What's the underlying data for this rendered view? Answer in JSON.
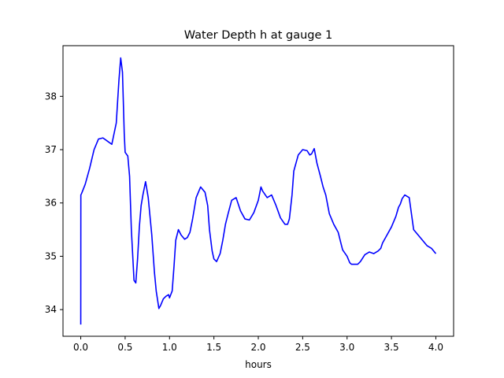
{
  "chart_data": {
    "type": "line",
    "title": "Water Depth h at gauge 1",
    "xlabel": "hours",
    "ylabel": "",
    "xlim": [
      -0.2,
      4.2
    ],
    "ylim": [
      33.5,
      38.95
    ],
    "xticks": [
      0.0,
      0.5,
      1.0,
      1.5,
      2.0,
      2.5,
      3.0,
      3.5,
      4.0
    ],
    "xtick_labels": [
      "0.0",
      "0.5",
      "1.0",
      "1.5",
      "2.0",
      "2.5",
      "3.0",
      "3.5",
      "4.0"
    ],
    "yticks": [
      34,
      35,
      36,
      37,
      38
    ],
    "ytick_labels": [
      "34",
      "35",
      "36",
      "37",
      "38"
    ],
    "grid": false,
    "legend": "none",
    "series": [
      {
        "color": "#0000ff",
        "x": [
          0.0,
          0.001,
          0.01,
          0.05,
          0.1,
          0.15,
          0.2,
          0.25,
          0.3,
          0.35,
          0.4,
          0.43,
          0.45,
          0.47,
          0.49,
          0.5,
          0.53,
          0.55,
          0.57,
          0.6,
          0.62,
          0.64,
          0.66,
          0.68,
          0.7,
          0.73,
          0.76,
          0.8,
          0.83,
          0.85,
          0.88,
          0.9,
          0.93,
          0.96,
          0.99,
          1.0,
          1.03,
          1.05,
          1.07,
          1.1,
          1.13,
          1.17,
          1.2,
          1.23,
          1.26,
          1.3,
          1.35,
          1.4,
          1.43,
          1.45,
          1.48,
          1.5,
          1.53,
          1.57,
          1.6,
          1.63,
          1.66,
          1.7,
          1.75,
          1.8,
          1.85,
          1.9,
          1.95,
          2.0,
          2.03,
          2.05,
          2.1,
          2.15,
          2.2,
          2.25,
          2.3,
          2.33,
          2.35,
          2.38,
          2.4,
          2.45,
          2.5,
          2.55,
          2.58,
          2.6,
          2.63,
          2.66,
          2.7,
          2.73,
          2.76,
          2.8,
          2.85,
          2.9,
          2.93,
          2.95,
          3.0,
          3.03,
          3.05,
          3.1,
          3.12,
          3.15,
          3.2,
          3.25,
          3.3,
          3.35,
          3.38,
          3.4,
          3.45,
          3.5,
          3.55,
          3.58,
          3.6,
          3.62,
          3.65,
          3.7,
          3.75,
          3.8,
          3.85,
          3.9,
          3.95,
          4.0
        ],
        "y": [
          33.72,
          36.15,
          36.18,
          36.35,
          36.65,
          37.0,
          37.2,
          37.22,
          37.16,
          37.1,
          37.5,
          38.3,
          38.72,
          38.45,
          37.3,
          36.95,
          36.88,
          36.5,
          35.5,
          34.55,
          34.5,
          34.95,
          35.55,
          35.95,
          36.15,
          36.4,
          36.1,
          35.4,
          34.7,
          34.35,
          34.02,
          34.08,
          34.2,
          34.25,
          34.28,
          34.22,
          34.35,
          34.8,
          35.3,
          35.5,
          35.4,
          35.32,
          35.35,
          35.45,
          35.7,
          36.1,
          36.3,
          36.2,
          35.95,
          35.5,
          35.1,
          34.95,
          34.9,
          35.05,
          35.3,
          35.6,
          35.8,
          36.05,
          36.1,
          35.85,
          35.7,
          35.68,
          35.82,
          36.05,
          36.3,
          36.22,
          36.1,
          36.15,
          35.95,
          35.72,
          35.6,
          35.6,
          35.7,
          36.15,
          36.6,
          36.9,
          37.0,
          36.98,
          36.9,
          36.92,
          37.02,
          36.75,
          36.5,
          36.3,
          36.15,
          35.8,
          35.6,
          35.45,
          35.25,
          35.12,
          35.0,
          34.88,
          34.85,
          34.85,
          34.85,
          34.9,
          35.03,
          35.08,
          35.05,
          35.1,
          35.15,
          35.25,
          35.4,
          35.55,
          35.75,
          35.92,
          35.98,
          36.08,
          36.15,
          36.1,
          35.5,
          35.4,
          35.3,
          35.2,
          35.15,
          35.05
        ],
        "label": ""
      }
    ]
  }
}
